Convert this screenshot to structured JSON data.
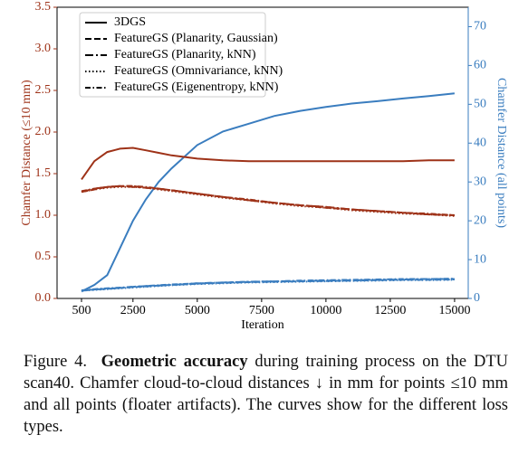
{
  "chart_data": {
    "type": "line",
    "ylabel": "Chamfer Distance (≤10 mm)",
    "y2label": "Chamfer Distance (all points)",
    "xlabel": "Iteration",
    "color": "#9e3218",
    "y2_color": "#3a7dbf",
    "x": [
      500,
      1000,
      1500,
      2000,
      2500,
      3000,
      3500,
      4000,
      5000,
      6000,
      7000,
      8000,
      9000,
      10000,
      11000,
      12000,
      13000,
      14000,
      15000
    ],
    "xlim": [
      -450,
      15530
    ],
    "xticks": [
      500,
      2500,
      5000,
      7500,
      10000,
      12500,
      15000
    ],
    "ylim": [
      0,
      3.5
    ],
    "yticks": [
      {
        "value": 0,
        "label": "0.0"
      },
      {
        "value": 0.5,
        "label": "0.5"
      },
      {
        "value": 1,
        "label": "1.0"
      },
      {
        "value": 1.5,
        "label": "1.5"
      },
      {
        "value": 2,
        "label": "2.0"
      },
      {
        "value": 2.5,
        "label": "2.5"
      },
      {
        "value": 3,
        "label": "3.0"
      },
      {
        "value": 3.5,
        "label": "3.5"
      }
    ],
    "y2lim": [
      0,
      75
    ],
    "y2ticks": [
      0,
      10,
      20,
      30,
      40,
      50,
      60,
      70
    ],
    "legend": "upper left",
    "series": [
      {
        "name": "3DGS",
        "linestyle": "solid",
        "values": [
          1.43,
          1.65,
          1.76,
          1.8,
          1.81,
          1.78,
          1.75,
          1.72,
          1.68,
          1.66,
          1.65,
          1.65,
          1.65,
          1.65,
          1.65,
          1.65,
          1.65,
          1.66,
          1.66
        ],
        "y2_values": [
          1.8,
          3.5,
          6,
          13,
          20,
          25.5,
          30,
          33.5,
          39.5,
          43,
          45,
          47,
          48.3,
          49.3,
          50.2,
          50.8,
          51.5,
          52.1,
          52.8
        ]
      },
      {
        "name": "FeatureGS (Planarity, Gaussian)",
        "linestyle": "dashed",
        "values": [
          1.28,
          1.31,
          1.34,
          1.35,
          1.35,
          1.33,
          1.32,
          1.3,
          1.26,
          1.22,
          1.18,
          1.15,
          1.12,
          1.09,
          1.07,
          1.05,
          1.03,
          1.01,
          1.0
        ],
        "y2_values": [
          2.0,
          2.3,
          2.5,
          2.7,
          2.9,
          3.1,
          3.3,
          3.5,
          3.8,
          4.0,
          4.2,
          4.3,
          4.4,
          4.5,
          4.6,
          4.7,
          4.8,
          4.8,
          4.9
        ]
      },
      {
        "name": "FeatureGS (Planarity, kNN)",
        "linestyle": "longdashdot",
        "values": [
          1.28,
          1.32,
          1.34,
          1.35,
          1.34,
          1.33,
          1.32,
          1.3,
          1.26,
          1.22,
          1.18,
          1.15,
          1.12,
          1.1,
          1.07,
          1.05,
          1.03,
          1.01,
          1.0
        ],
        "y2_values": [
          2.0,
          2.3,
          2.5,
          2.7,
          3.0,
          3.2,
          3.3,
          3.5,
          3.9,
          4.1,
          4.3,
          4.4,
          4.5,
          4.6,
          4.7,
          4.8,
          4.9,
          5.0,
          5.0
        ]
      },
      {
        "name": "FeatureGS (Omnivariance, kNN)",
        "linestyle": "dotted",
        "values": [
          1.28,
          1.31,
          1.33,
          1.34,
          1.34,
          1.33,
          1.31,
          1.29,
          1.25,
          1.21,
          1.18,
          1.14,
          1.11,
          1.09,
          1.06,
          1.04,
          1.02,
          1.01,
          0.99
        ],
        "y2_values": [
          2.0,
          2.2,
          2.4,
          2.6,
          2.8,
          3.0,
          3.2,
          3.4,
          3.7,
          3.9,
          4.1,
          4.2,
          4.3,
          4.4,
          4.5,
          4.6,
          4.7,
          4.7,
          4.8
        ]
      },
      {
        "name": "FeatureGS (Eigenentropy, kNN)",
        "linestyle": "dashdot",
        "values": [
          1.29,
          1.32,
          1.34,
          1.35,
          1.35,
          1.34,
          1.32,
          1.3,
          1.26,
          1.22,
          1.19,
          1.15,
          1.12,
          1.1,
          1.07,
          1.05,
          1.03,
          1.02,
          1.0
        ],
        "y2_values": [
          2.1,
          2.4,
          2.6,
          2.8,
          3.0,
          3.2,
          3.4,
          3.6,
          3.9,
          4.1,
          4.3,
          4.4,
          4.6,
          4.7,
          4.8,
          4.9,
          5.0,
          5.0,
          5.1
        ]
      }
    ]
  },
  "caption": {
    "label": "Figure 4.",
    "bold": "Geometric accuracy",
    "text": "during training process on the DTU scan40. Chamfer cloud-to-cloud distances ↓ in mm for points ≤10 mm and all points (floater artifacts). The curves show for the different loss types."
  }
}
